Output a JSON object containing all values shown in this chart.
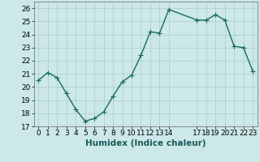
{
  "x": [
    0,
    1,
    2,
    3,
    4,
    5,
    6,
    7,
    8,
    9,
    10,
    11,
    12,
    13,
    14,
    17,
    18,
    19,
    20,
    21,
    22,
    23
  ],
  "y": [
    20.5,
    21.1,
    20.7,
    19.5,
    18.3,
    17.4,
    17.6,
    18.1,
    19.3,
    20.4,
    20.9,
    22.4,
    24.2,
    24.1,
    25.9,
    25.1,
    25.1,
    25.5,
    25.1,
    23.1,
    23.0,
    21.2
  ],
  "line_color": "#1a6b5a",
  "marker_color": "#1a6b5a",
  "bg_color": "#cce8e8",
  "grid_color": "#aacccc",
  "xlabel": "Humidex (Indice chaleur)",
  "ylim": [
    17,
    26.5
  ],
  "yticks": [
    17,
    18,
    19,
    20,
    21,
    22,
    23,
    24,
    25,
    26
  ],
  "xtick_labels": [
    "0",
    "1",
    "2",
    "3",
    "4",
    "5",
    "6",
    "7",
    "8",
    "9",
    "10",
    "11",
    "12",
    "13",
    "14",
    "17",
    "18",
    "19",
    "20",
    "21",
    "22",
    "23"
  ],
  "xlabel_fontsize": 7.5,
  "tick_fontsize": 6.5,
  "line_width": 1.0,
  "marker_size": 2.5
}
